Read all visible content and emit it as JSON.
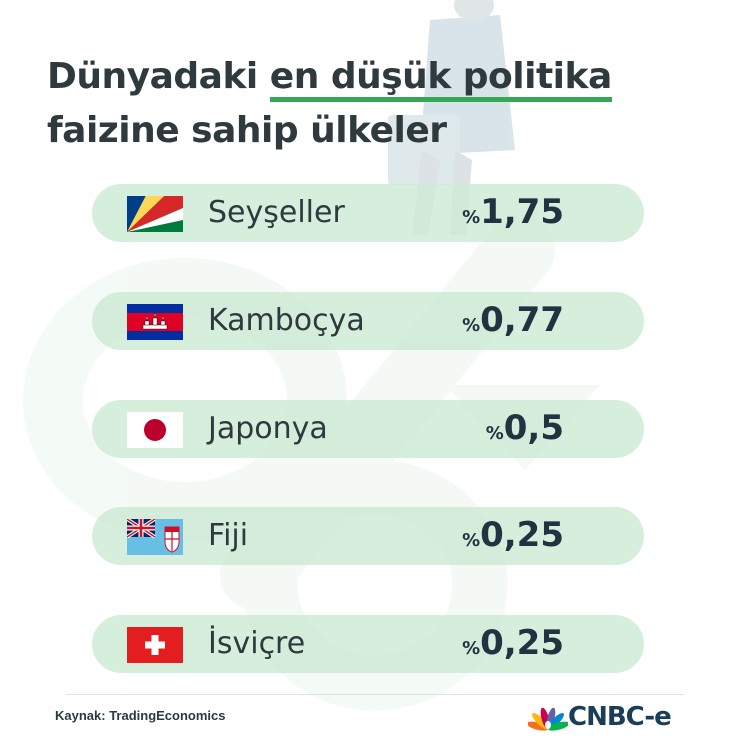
{
  "title": {
    "part1": "Dünyadaki ",
    "highlight": "en düşük politika",
    "line2": "faizine sahip ülkeler"
  },
  "rows": [
    {
      "flag": "seychelles-flag",
      "country": "Seyşeller",
      "pct": "%",
      "rate": "1,75"
    },
    {
      "flag": "cambodia-flag",
      "country": "Kamboçya",
      "pct": "%",
      "rate": "0,77"
    },
    {
      "flag": "japan-flag",
      "country": "Japonya",
      "pct": "%",
      "rate": "0,5"
    },
    {
      "flag": "fiji-flag",
      "country": "Fiji",
      "pct": "%",
      "rate": "0,25"
    },
    {
      "flag": "switzerland-flag",
      "country": "İsviçre",
      "pct": "%",
      "rate": "0,25"
    }
  ],
  "source": "Kaynak: TradingEconomics",
  "logo": {
    "icon": "peacock-icon",
    "text": "CNBC-e"
  },
  "colors": {
    "accent_underline": "#36a853",
    "row_background": "#cdead4",
    "title_text": "#2f3a3e",
    "rate_text": "#1f3340",
    "logo_text": "#1a3e58"
  }
}
